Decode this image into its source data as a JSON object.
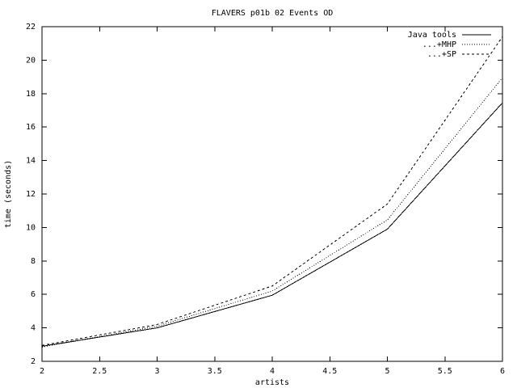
{
  "chart_data": {
    "type": "line",
    "title": "FLAVERS p01b 02 Events OD",
    "x_label": "artists",
    "y_label": "time (seconds)",
    "x": [
      2,
      3,
      4,
      5,
      6
    ],
    "series": [
      {
        "name": "Java tools",
        "color": "#000000",
        "linestyle": "solid",
        "values": [
          2.9,
          4.0,
          5.95,
          9.9,
          17.45
        ]
      },
      {
        "name": "...+MHP",
        "color": "#000000",
        "linestyle": "dotted",
        "values": [
          2.85,
          4.1,
          6.2,
          10.45,
          18.95
        ]
      },
      {
        "name": "...+SP",
        "color": "#000000",
        "linestyle": "dashed",
        "values": [
          2.95,
          4.2,
          6.5,
          11.4,
          21.4
        ]
      }
    ],
    "xlim": [
      2,
      6
    ],
    "xticks": [
      2,
      2.5,
      3,
      3.5,
      4,
      4.5,
      5,
      5.5,
      6
    ],
    "ylim": [
      2,
      22
    ],
    "yticks": [
      2,
      4,
      6,
      8,
      10,
      12,
      14,
      16,
      18,
      20,
      22
    ],
    "grid": false,
    "legend": "top-right"
  }
}
